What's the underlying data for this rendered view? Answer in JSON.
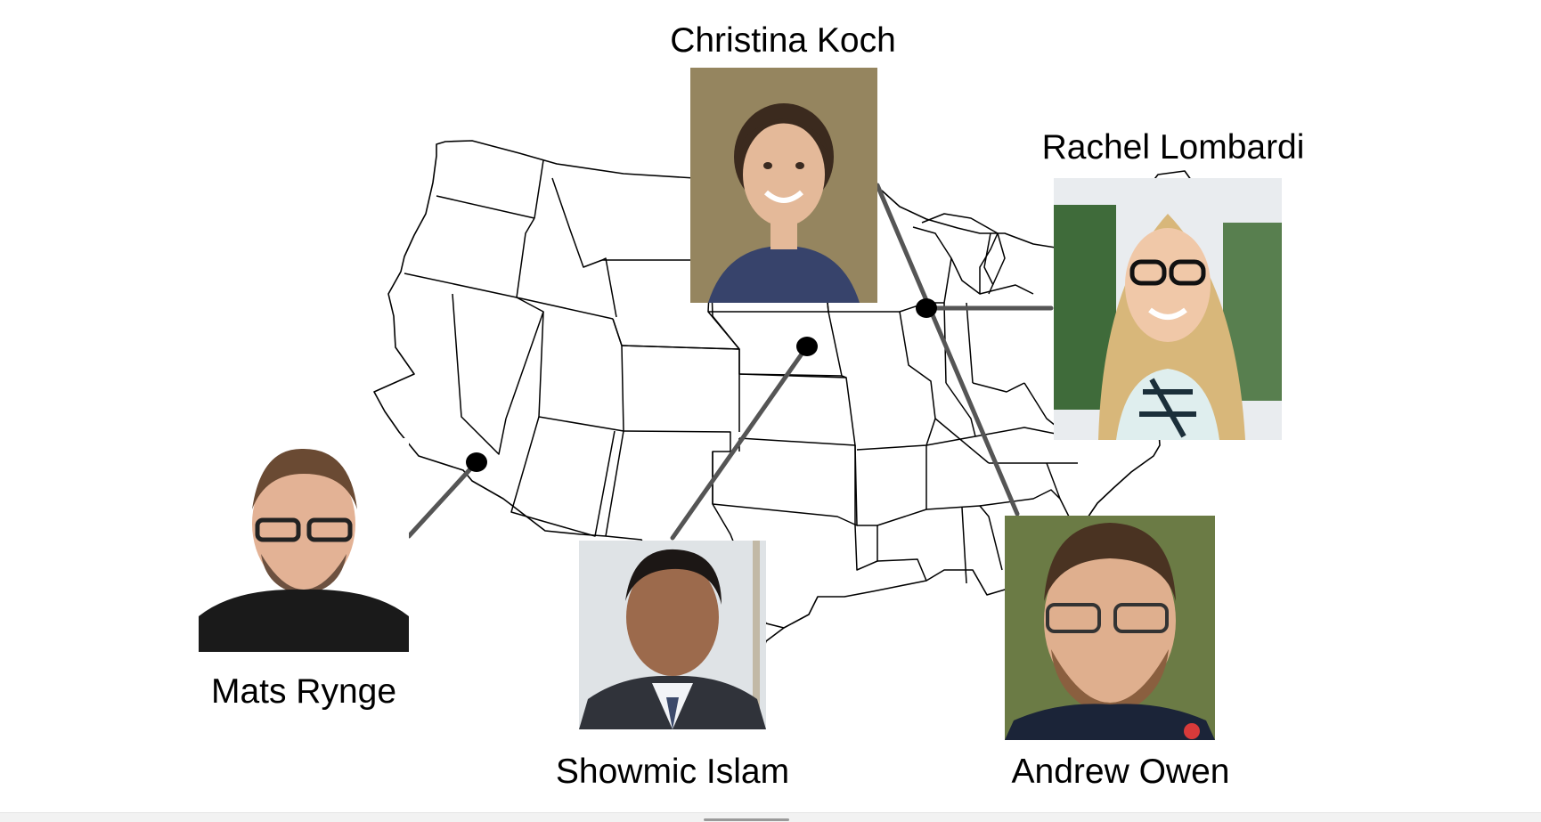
{
  "people": [
    {
      "id": "christina",
      "name": "Christina Koch"
    },
    {
      "id": "rachel",
      "name": "Rachel Lombardi"
    },
    {
      "id": "mats",
      "name": "Mats Rynge"
    },
    {
      "id": "showmic",
      "name": "Showmic Islam"
    },
    {
      "id": "andrew",
      "name": "Andrew Owen"
    }
  ],
  "map": {
    "region": "contiguous-united-states",
    "outline_color": "#000000",
    "fill_color": "#ffffff",
    "connector_color": "#555555",
    "marker_color": "#000000"
  },
  "photos": {
    "christina-icon": "portrait-photo",
    "rachel-icon": "portrait-photo",
    "mats-icon": "portrait-photo",
    "showmic-icon": "portrait-photo",
    "andrew-icon": "portrait-photo"
  }
}
